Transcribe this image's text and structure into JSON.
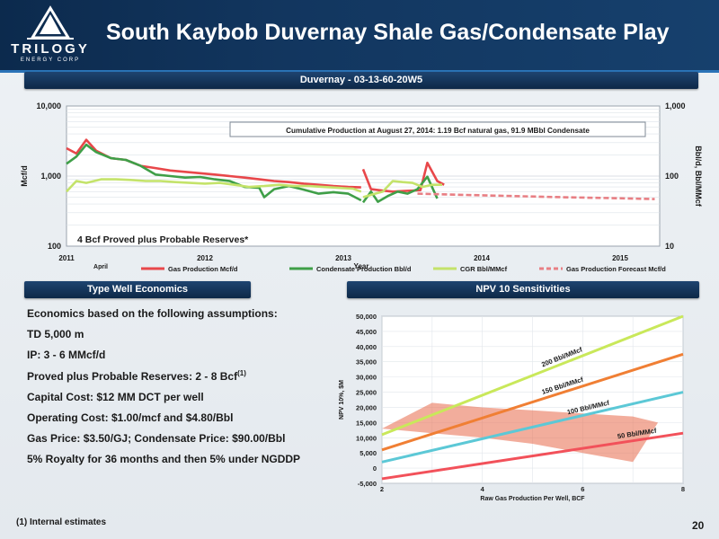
{
  "header": {
    "logo_word": "TRILOGY",
    "logo_sub": "ENERGY CORP",
    "title": "South Kaybob Duvernay Shale Gas/Condensate Play"
  },
  "top_chart": {
    "banner": "Duvernay - 03-13-60-20W5",
    "annotation": "Cumulative Production at  August 27, 2014: 1.19 Bcf natural gas, 91.9 MBbl Condensate",
    "reserves_note": "4 Bcf Proved plus Probable Reserves*",
    "month_label": "April",
    "year_label": "Year"
  },
  "econ_banner": "Type Well Economics",
  "npv_banner": "NPV 10 Sensitivities",
  "economics": {
    "heading": "Economics based on the following assumptions:",
    "td": "TD 5,000 m",
    "ip": "IP: 3 - 6 MMcf/d",
    "reserves": "Proved plus Probable Reserves: 2 - 8 Bcf",
    "reserves_sup": "(1)",
    "capital": "Capital Cost: $12 MM DCT per well",
    "operating": "Operating Cost: $1.00/mcf and $4.80/Bbl",
    "prices": "Gas Price: $3.50/GJ; Condensate Price: $90.00/Bbl",
    "royalty": "5% Royalty for 36 months and then 5% under NGDDP"
  },
  "footnote": "(1) Internal estimates",
  "page_number": "20",
  "chart_data": [
    {
      "type": "line",
      "title": "Duvernay - 03-13-60-20W5",
      "xlabel": "Year",
      "ylabel": "Mcf/d",
      "y2label": "Bbl/d, Bbl/MMcf",
      "x_ticks": [
        "2011",
        "2012",
        "2013",
        "2014",
        "2015"
      ],
      "y_ticks": [
        "100",
        "1,000",
        "10,000"
      ],
      "y2_ticks": [
        "10",
        "100",
        "1,000"
      ],
      "ylim": [
        100,
        10000
      ],
      "y2lim": [
        10,
        1000
      ],
      "y_scale": "log",
      "grid": true,
      "legend_position": "bottom",
      "series": [
        {
          "name": "Gas Production Mcf/d",
          "color": "#e8474a",
          "axis": "left",
          "x": [
            2011.0,
            2011.1,
            2011.2,
            2011.3,
            2011.45,
            2011.6,
            2011.75,
            2011.9,
            2012.05,
            2012.2,
            2012.35,
            2012.5,
            2012.65,
            2012.8,
            2012.95,
            2013.1,
            2013.25,
            2013.4,
            2013.55,
            2013.7,
            2013.85,
            2013.98
          ],
          "y": [
            2500,
            2100,
            3300,
            2300,
            1800,
            1700,
            1400,
            1300,
            1200,
            1150,
            1100,
            1050,
            1000,
            950,
            900,
            850,
            820,
            780,
            750,
            720,
            700,
            690
          ]
        },
        {
          "name": "Gas Production Mcf/d (2014)",
          "color": "#e8474a",
          "axis": "left",
          "x": [
            2014.0,
            2014.08,
            2014.2,
            2014.3,
            2014.4,
            2014.5,
            2014.58,
            2014.65,
            2014.75,
            2014.82
          ],
          "y": [
            1250,
            650,
            620,
            600,
            610,
            620,
            630,
            1550,
            850,
            750
          ]
        },
        {
          "name": "Condensate Production Bbl/d",
          "color": "#3f9f48",
          "axis": "left",
          "x": [
            2011.0,
            2011.1,
            2011.2,
            2011.3,
            2011.45,
            2011.6,
            2011.75,
            2011.9,
            2012.05,
            2012.2,
            2012.35,
            2012.5,
            2012.65,
            2012.8,
            2012.95,
            2013.0,
            2013.1,
            2013.25,
            2013.4,
            2013.55,
            2013.7,
            2013.85,
            2013.98
          ],
          "y": [
            1500,
            1900,
            2800,
            2200,
            1800,
            1700,
            1400,
            1050,
            1000,
            950,
            970,
            900,
            850,
            700,
            680,
            500,
            650,
            720,
            640,
            560,
            590,
            560,
            450
          ]
        },
        {
          "name": "Condensate Production Bbl/d (2014)",
          "color": "#3f9f48",
          "axis": "left",
          "x": [
            2014.0,
            2014.08,
            2014.15,
            2014.25,
            2014.35,
            2014.45,
            2014.55,
            2014.65,
            2014.75
          ],
          "y": [
            420,
            600,
            430,
            520,
            600,
            560,
            650,
            980,
            480
          ]
        },
        {
          "name": "CGR Bbl/MMcf",
          "color": "#c4e36a",
          "axis": "right",
          "x": [
            2011.0,
            2011.1,
            2011.2,
            2011.35,
            2011.5,
            2011.65,
            2011.8,
            2011.95,
            2012.1,
            2012.25,
            2012.4,
            2012.55,
            2012.7,
            2012.85,
            2013.0,
            2013.15,
            2013.3,
            2013.45,
            2013.6,
            2013.75,
            2013.9,
            2013.98
          ],
          "y": [
            60,
            85,
            80,
            90,
            90,
            88,
            85,
            85,
            82,
            80,
            78,
            80,
            75,
            70,
            72,
            75,
            72,
            72,
            70,
            68,
            66,
            60
          ]
        },
        {
          "name": "CGR Bbl/MMcf (2014)",
          "color": "#c4e36a",
          "axis": "right",
          "x": [
            2014.0,
            2014.1,
            2014.2,
            2014.3,
            2014.4,
            2014.5,
            2014.6,
            2014.7,
            2014.8
          ],
          "y": [
            50,
            55,
            60,
            85,
            82,
            80,
            70,
            75,
            75
          ]
        },
        {
          "name": "Gas Production Forecast Mcf/d",
          "color": "#e87f84",
          "axis": "left",
          "dashed": true,
          "x": [
            2014.55,
            2015.0,
            2015.5,
            2016.0,
            2016.5,
            2016.95
          ],
          "y": [
            560,
            540,
            520,
            500,
            485,
            470
          ]
        }
      ]
    },
    {
      "type": "line",
      "title": "NPV 10 Sensitivities",
      "xlabel": "Raw Gas Production Per Well, BCF",
      "ylabel": "NPV 10%, $M",
      "xlim": [
        2,
        8
      ],
      "ylim": [
        -5000,
        50000
      ],
      "x_ticks": [
        "2",
        "4",
        "6",
        "8"
      ],
      "y_ticks": [
        "-5,000",
        "0",
        "5,000",
        "10,000",
        "15,000",
        "20,000",
        "25,000",
        "30,000",
        "35,000",
        "40,000",
        "45,000",
        "50,000"
      ],
      "series": [
        {
          "name": "200 Bbl/MMcf",
          "color": "#c9e85a",
          "x": [
            2,
            8
          ],
          "y": [
            11000,
            50000
          ]
        },
        {
          "name": "150 Bbl/MMcf",
          "color": "#f07f34",
          "x": [
            2,
            8
          ],
          "y": [
            6000,
            37500
          ]
        },
        {
          "name": "100 Bbl/MMcf",
          "color": "#5cc8d6",
          "x": [
            2,
            8
          ],
          "y": [
            2000,
            25000
          ]
        },
        {
          "name": "50 Bbl/MMcf",
          "color": "#f2515a",
          "x": [
            2,
            8
          ],
          "y": [
            -3500,
            11500
          ]
        }
      ],
      "shaded_region": {
        "color": "#e86a4a",
        "x": [
          2,
          3,
          4,
          5,
          6,
          7,
          7.5,
          7,
          6,
          5,
          4,
          3,
          2
        ],
        "y": [
          13000,
          21500,
          20000,
          19000,
          18000,
          17000,
          15000,
          2000,
          5000,
          8000,
          10000,
          11500,
          13000
        ]
      }
    }
  ]
}
